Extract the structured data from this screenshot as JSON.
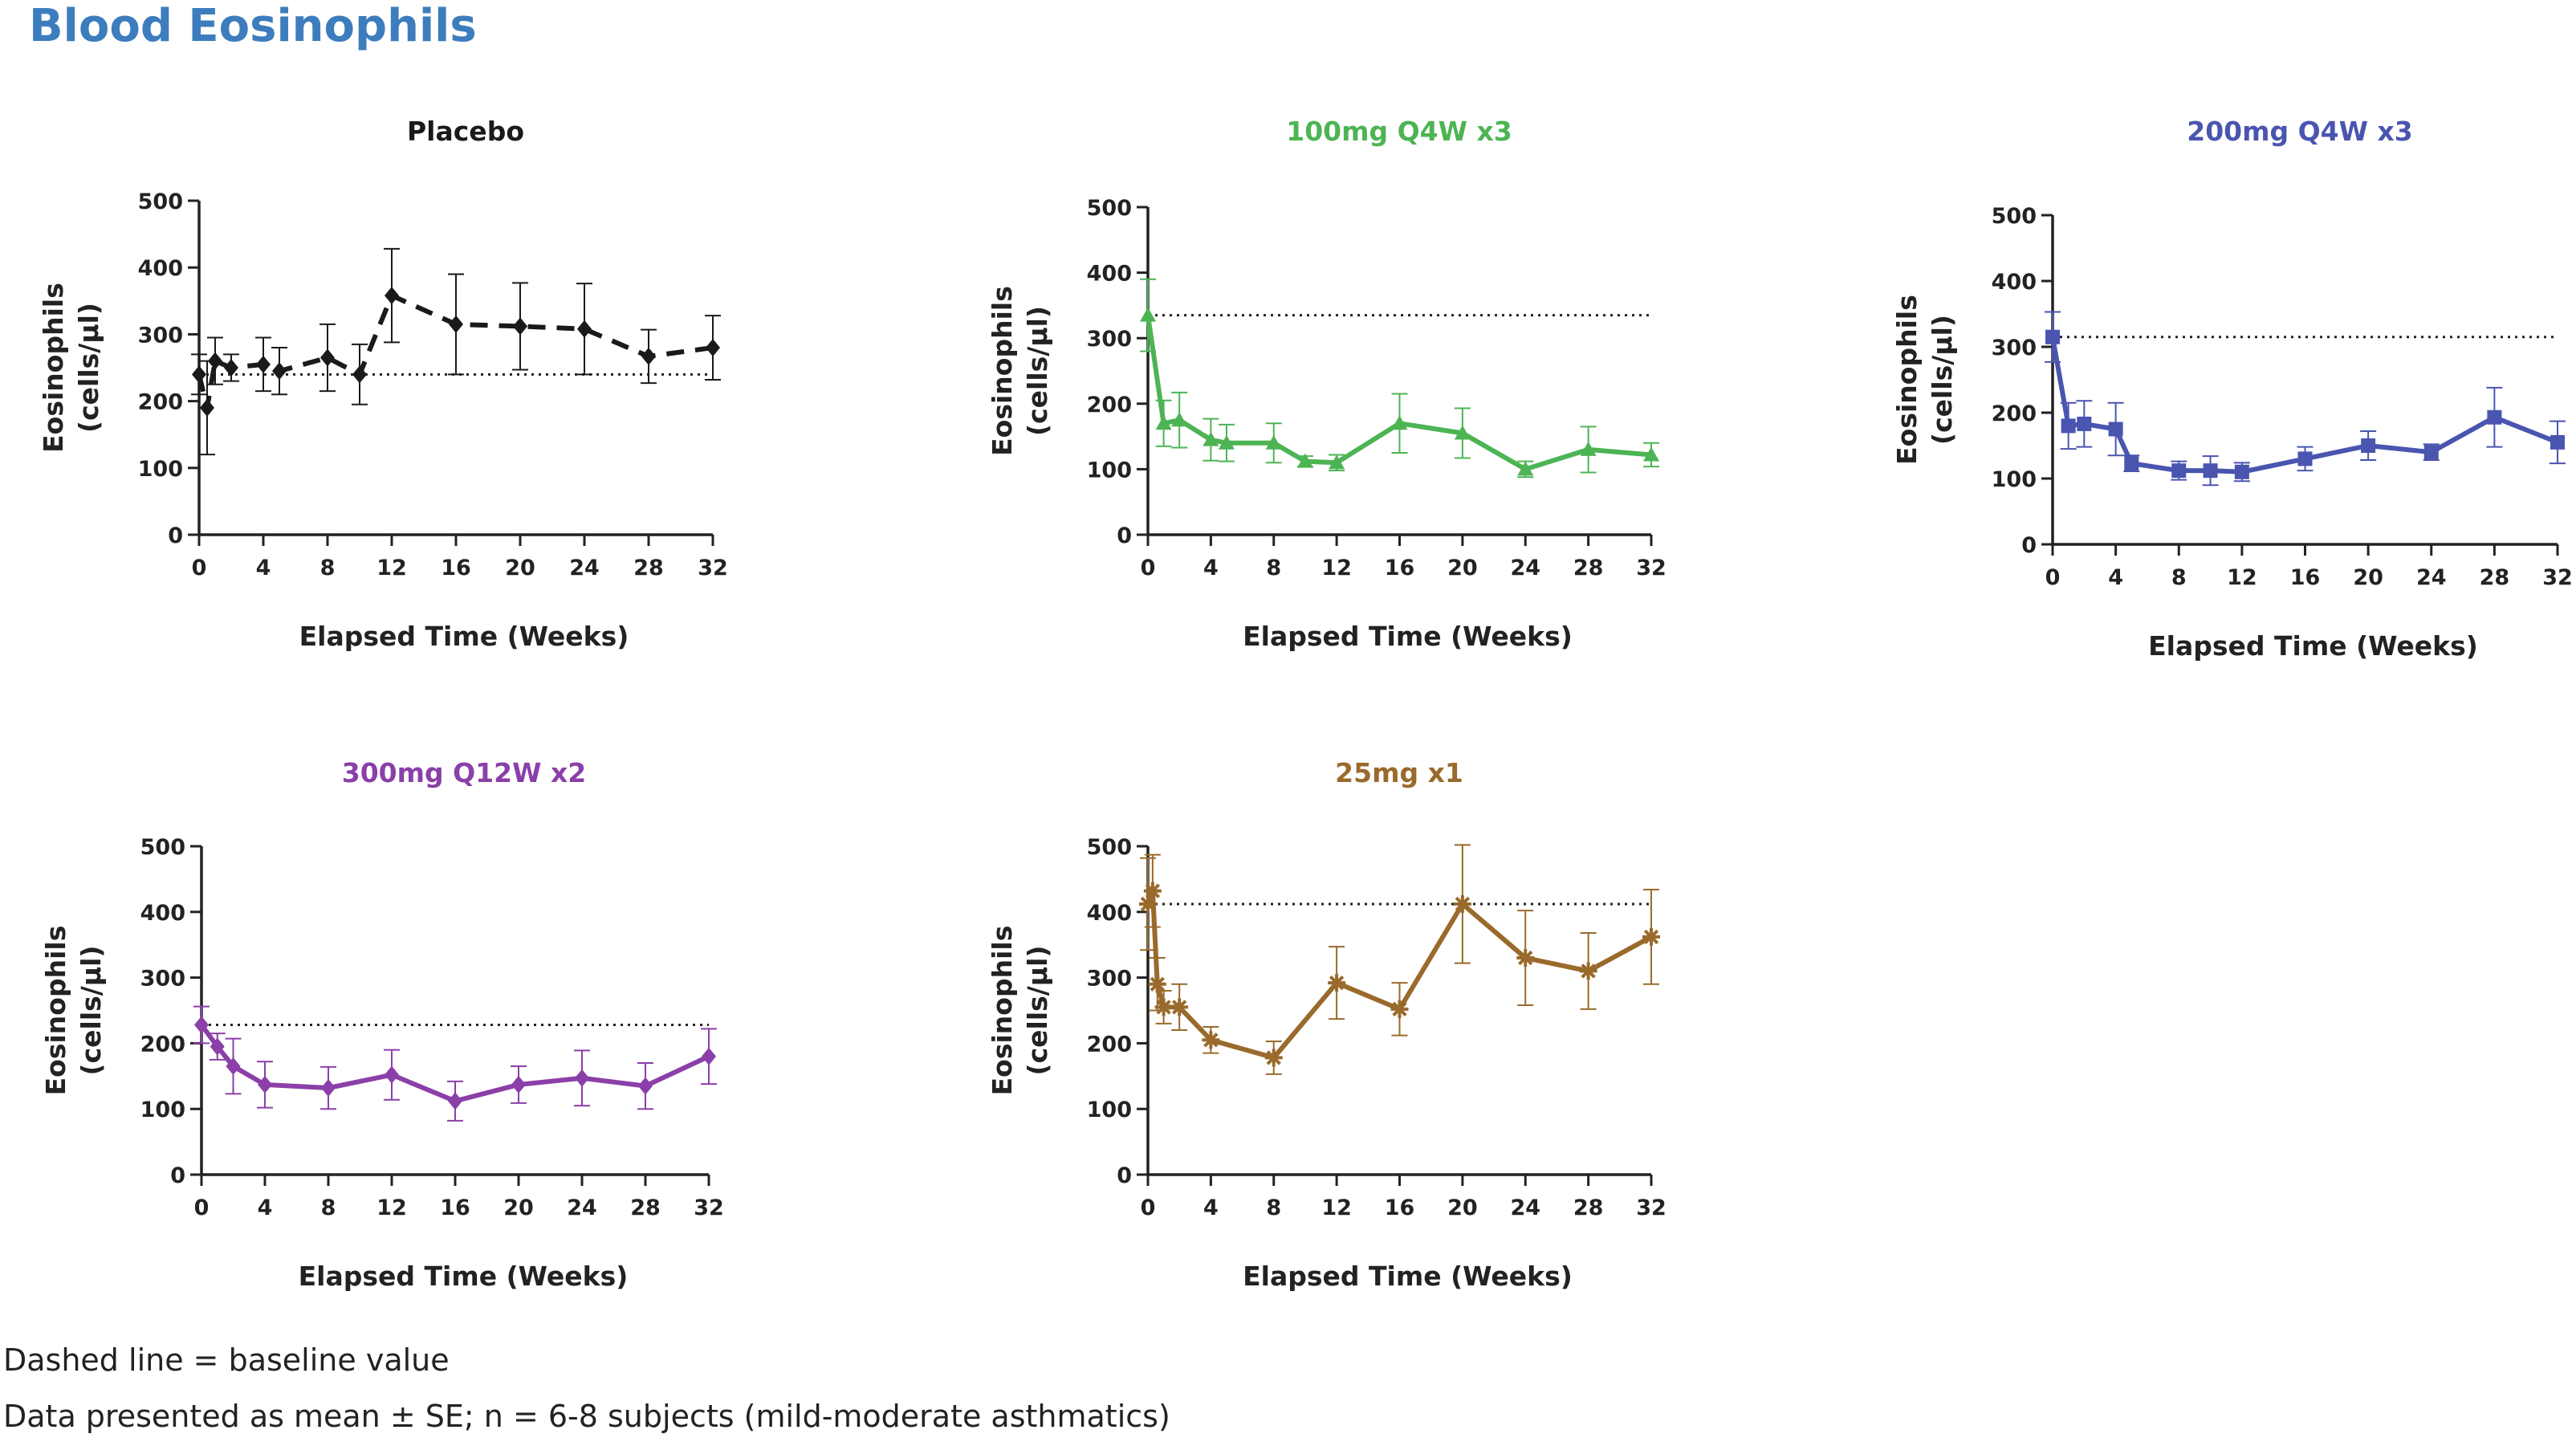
{
  "page": {
    "title": "Blood Eosinophils",
    "footnotes": [
      "Dashed line = baseline value",
      "Data presented as mean ± SE; n = 6-8 subjects (mild-moderate asthmatics)"
    ]
  },
  "chart_data": [
    {
      "type": "line",
      "title": "Placebo",
      "color": "#1a1a1a",
      "line_style": "dashed",
      "marker": "diamond",
      "xlabel": "Elapsed Time (Weeks)",
      "ylabel_lines": [
        "Eosinophils",
        "(cells/µl)"
      ],
      "xlim": [
        0,
        32
      ],
      "ylim": [
        0,
        500
      ],
      "xticks": [
        0,
        4,
        8,
        12,
        16,
        20,
        24,
        28,
        32
      ],
      "yticks": [
        0,
        100,
        200,
        300,
        400,
        500
      ],
      "baseline": 240,
      "x": [
        0,
        0.5,
        1,
        2,
        4,
        5,
        8,
        10,
        12,
        16,
        20,
        24,
        28,
        32
      ],
      "y": [
        240,
        190,
        260,
        250,
        255,
        245,
        265,
        240,
        358,
        315,
        312,
        308,
        267,
        280
      ],
      "se": [
        30,
        70,
        35,
        20,
        40,
        35,
        50,
        45,
        70,
        75,
        65,
        68,
        40,
        48
      ]
    },
    {
      "type": "line",
      "title": "100mg Q4W x3",
      "color": "#4db454",
      "line_style": "solid",
      "marker": "triangle",
      "xlabel": "Elapsed Time (Weeks)",
      "ylabel_lines": [
        "Eosinophils",
        "(cells/µl)"
      ],
      "xlim": [
        0,
        32
      ],
      "ylim": [
        0,
        500
      ],
      "xticks": [
        0,
        4,
        8,
        12,
        16,
        20,
        24,
        28,
        32
      ],
      "yticks": [
        0,
        100,
        200,
        300,
        400,
        500
      ],
      "baseline": 335,
      "x": [
        0,
        1,
        2,
        4,
        5,
        8,
        10,
        12,
        16,
        20,
        24,
        28,
        32
      ],
      "y": [
        335,
        170,
        175,
        145,
        140,
        140,
        112,
        110,
        170,
        155,
        100,
        130,
        122
      ],
      "se": [
        55,
        35,
        42,
        32,
        28,
        30,
        8,
        12,
        45,
        38,
        12,
        35,
        18
      ]
    },
    {
      "type": "line",
      "title": "200mg Q4W x3",
      "color": "#4a55b0",
      "line_style": "solid",
      "marker": "square",
      "xlabel": "Elapsed Time (Weeks)",
      "ylabel_lines": [
        "Eosinophils",
        "(cells/µl)"
      ],
      "xlim": [
        0,
        32
      ],
      "ylim": [
        0,
        500
      ],
      "xticks": [
        0,
        4,
        8,
        12,
        16,
        20,
        24,
        28,
        32
      ],
      "yticks": [
        0,
        100,
        200,
        300,
        400,
        500
      ],
      "baseline": 315,
      "x": [
        0,
        1,
        2,
        4,
        5,
        8,
        10,
        12,
        16,
        20,
        24,
        28,
        32
      ],
      "y": [
        315,
        180,
        183,
        175,
        123,
        112,
        112,
        110,
        130,
        150,
        140,
        193,
        155
      ],
      "se": [
        38,
        35,
        35,
        40,
        12,
        14,
        22,
        14,
        18,
        22,
        12,
        45,
        32
      ]
    },
    {
      "type": "line",
      "title": "300mg Q12W x2",
      "color": "#8b3fa8",
      "line_style": "solid",
      "marker": "diamond",
      "xlabel": "Elapsed Time (Weeks)",
      "ylabel_lines": [
        "Eosinophils",
        "(cells/µl)"
      ],
      "xlim": [
        0,
        32
      ],
      "ylim": [
        0,
        500
      ],
      "xticks": [
        0,
        4,
        8,
        12,
        16,
        20,
        24,
        28,
        32
      ],
      "yticks": [
        0,
        100,
        200,
        300,
        400,
        500
      ],
      "baseline": 228,
      "x": [
        0,
        1,
        2,
        4,
        8,
        12,
        16,
        20,
        24,
        28,
        32
      ],
      "y": [
        228,
        195,
        165,
        137,
        132,
        152,
        112,
        137,
        147,
        135,
        180
      ],
      "se": [
        28,
        20,
        42,
        35,
        32,
        38,
        30,
        28,
        42,
        35,
        42
      ]
    },
    {
      "type": "line",
      "title": "25mg x1",
      "color": "#9a6a2c",
      "line_style": "solid",
      "marker": "asterisk",
      "xlabel": "Elapsed Time (Weeks)",
      "ylabel_lines": [
        "Eosinophils",
        "(cells/µl)"
      ],
      "xlim": [
        0,
        32
      ],
      "ylim": [
        0,
        500
      ],
      "xticks": [
        0,
        4,
        8,
        12,
        16,
        20,
        24,
        28,
        32
      ],
      "yticks": [
        0,
        100,
        200,
        300,
        400,
        500
      ],
      "baseline": 412,
      "x": [
        0,
        0.3,
        0.6,
        1,
        2,
        4,
        8,
        12,
        16,
        20,
        24,
        28,
        32
      ],
      "y": [
        412,
        432,
        290,
        255,
        255,
        205,
        178,
        292,
        252,
        412,
        330,
        310,
        362
      ],
      "se": [
        70,
        55,
        40,
        25,
        35,
        20,
        25,
        55,
        40,
        90,
        72,
        58,
        72
      ]
    }
  ]
}
